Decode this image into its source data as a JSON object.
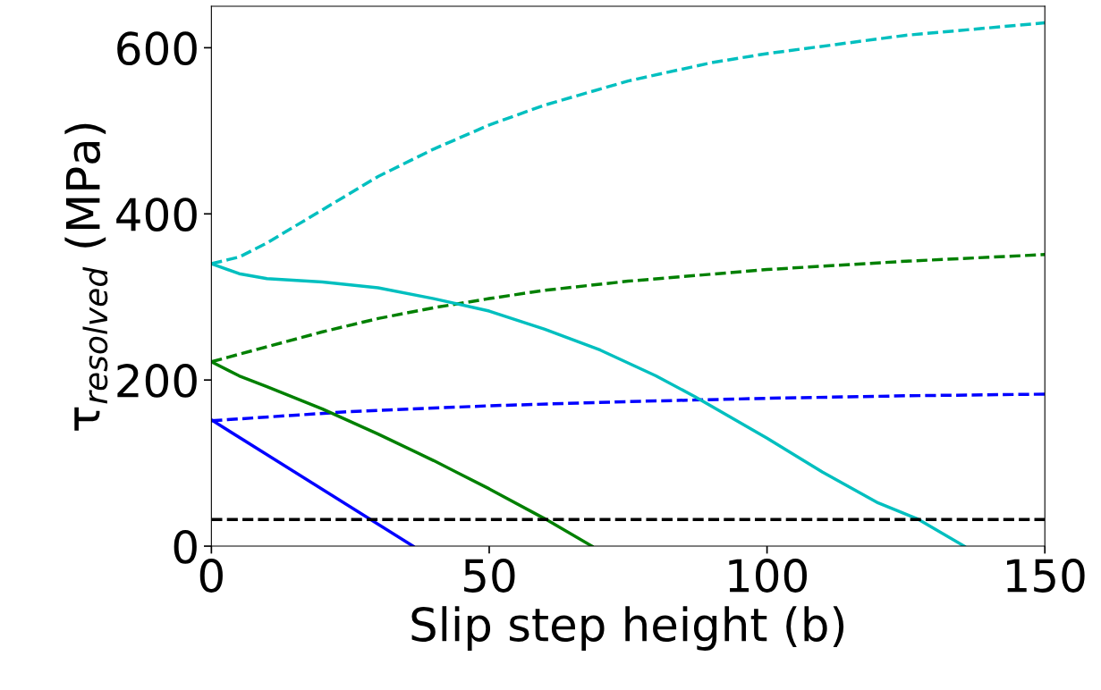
{
  "chart_data": {
    "type": "line",
    "xlabel": "Slip step height (b)",
    "ylabel": "τ$_{resolved}$ (MPa)",
    "xlim": [
      0,
      150
    ],
    "ylim": [
      0,
      650
    ],
    "xticks": [
      0,
      50,
      100,
      150
    ],
    "yticks": [
      0,
      200,
      400,
      600
    ],
    "grid": false,
    "legend": false,
    "marker": "none",
    "series": [
      {
        "color": "#0000ff",
        "line_style": "solid",
        "x": [
          0,
          36.3
        ],
        "values": [
          152,
          0
        ]
      },
      {
        "color": "#0000ff",
        "line_style": "dashed",
        "x": [
          0,
          25,
          50,
          75,
          100,
          125,
          150
        ],
        "values": [
          151,
          162,
          169,
          174,
          178,
          181,
          183
        ]
      },
      {
        "color": "#008000",
        "line_style": "solid",
        "x": [
          0,
          5,
          10,
          20,
          30,
          40,
          50,
          60,
          68.5
        ],
        "values": [
          222,
          205,
          192,
          165,
          135,
          103,
          69,
          33,
          0
        ]
      },
      {
        "color": "#008000",
        "line_style": "dashed",
        "x": [
          0,
          10,
          20,
          30,
          40,
          50,
          60,
          75,
          100,
          125,
          150
        ],
        "values": [
          222,
          240,
          258,
          274,
          287,
          298,
          308,
          319,
          333,
          343,
          351
        ]
      },
      {
        "color": "#00bfbf",
        "line_style": "solid",
        "x": [
          0,
          5,
          10,
          20,
          30,
          40,
          50,
          60,
          70,
          80,
          87,
          100,
          110,
          120,
          127,
          135.5
        ],
        "values": [
          340,
          328,
          322,
          318,
          311,
          298,
          283,
          261,
          236,
          205,
          180,
          130,
          89,
          52,
          33,
          0
        ]
      },
      {
        "color": "#00bfbf",
        "line_style": "dashed",
        "x": [
          0,
          5,
          10,
          20,
          30,
          40,
          50,
          60,
          75,
          90,
          100,
          125,
          150
        ],
        "values": [
          340,
          348,
          365,
          405,
          445,
          478,
          507,
          531,
          560,
          582,
          593,
          615,
          630
        ]
      }
    ],
    "ref_lines": [
      {
        "axis": "y",
        "value": 32,
        "color": "#000000",
        "line_style": "dashed"
      }
    ]
  }
}
